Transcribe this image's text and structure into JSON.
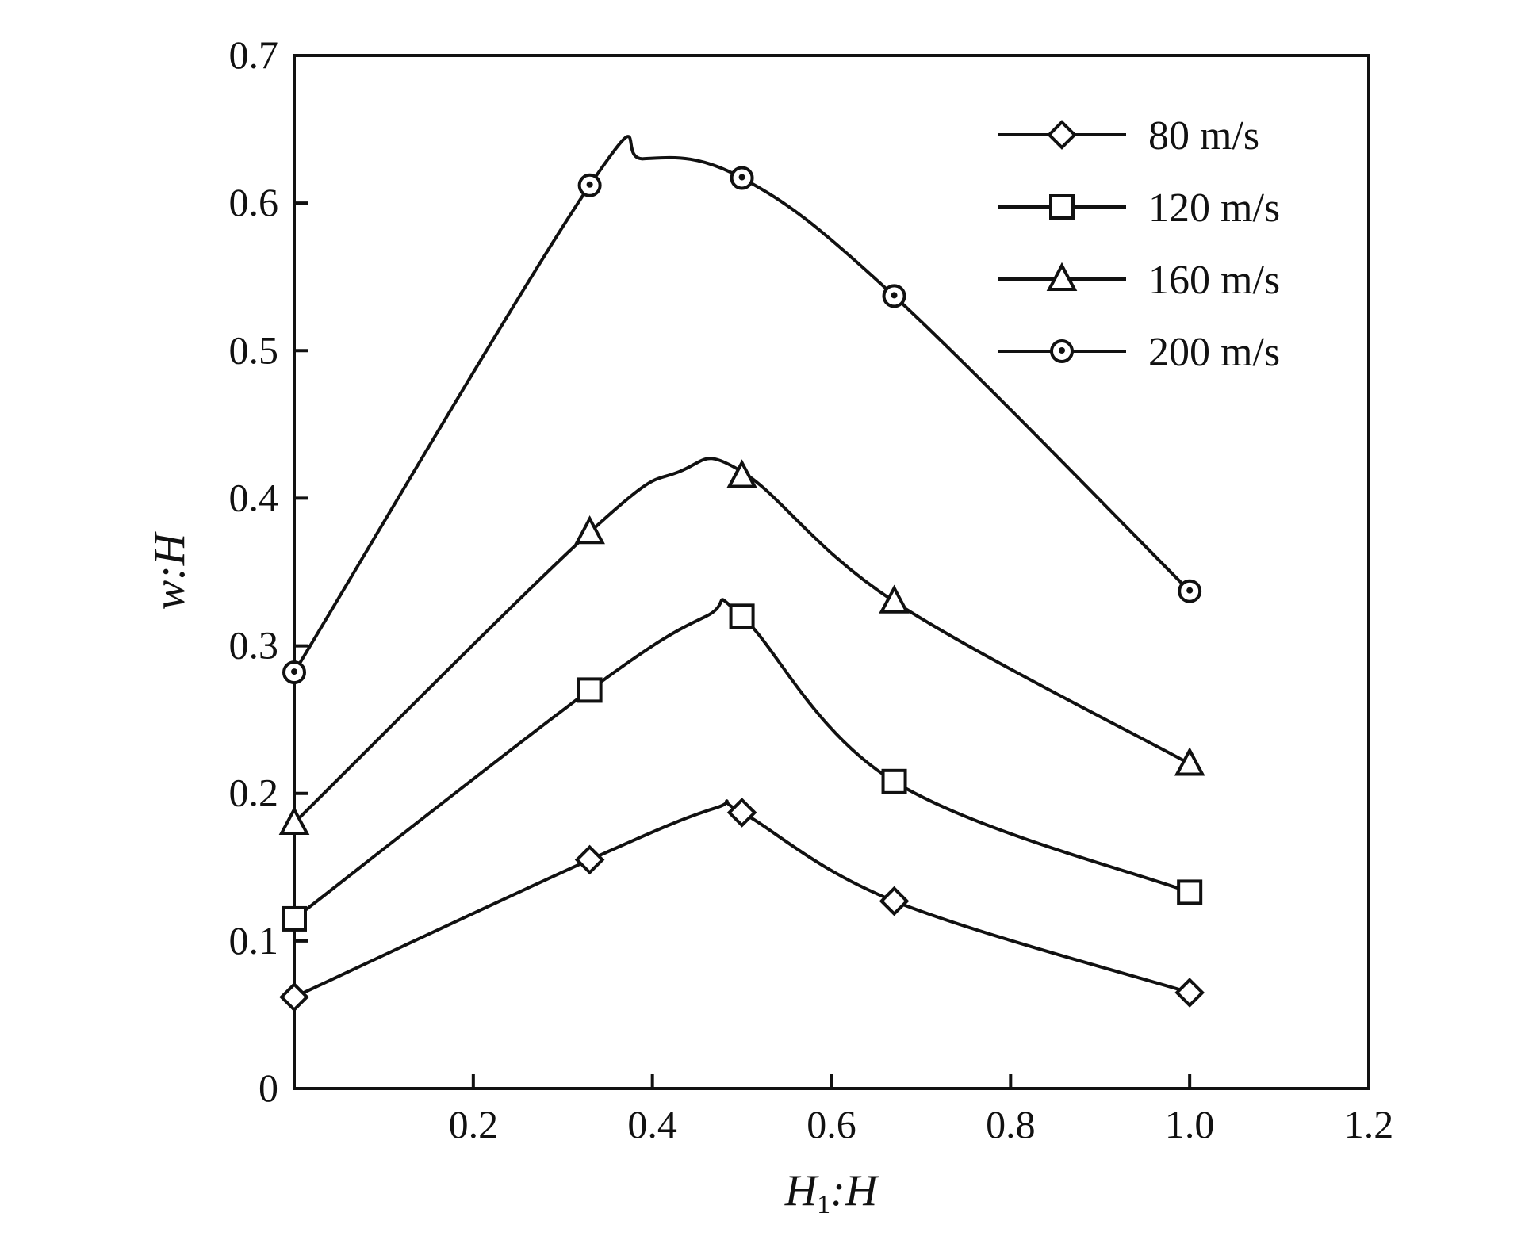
{
  "chart_data": {
    "type": "line",
    "title": "",
    "xlabel": "H1:H",
    "ylabel": "w:H",
    "xlim": [
      0,
      1.2
    ],
    "ylim": [
      0,
      0.7
    ],
    "xticks": [
      0.2,
      0.4,
      0.6,
      0.8,
      1.0,
      1.2
    ],
    "xtick_labels": [
      "0.2",
      "0.4",
      "0.6",
      "0.8",
      "1.0",
      "1.2"
    ],
    "yticks": [
      0,
      0.1,
      0.2,
      0.3,
      0.4,
      0.5,
      0.6,
      0.7
    ],
    "ytick_labels": [
      "0",
      "0.1",
      "0.2",
      "0.3",
      "0.4",
      "0.5",
      "0.6",
      "0.7"
    ],
    "legend_position": "top-right",
    "grid": false,
    "series": [
      {
        "name": "80 m/s",
        "marker": "diamond",
        "x": [
          0,
          0.33,
          0.5,
          0.67,
          1.0
        ],
        "y": [
          0.062,
          0.155,
          0.187,
          0.127,
          0.065
        ],
        "curve_x": [
          0,
          0.33,
          0.47,
          0.5,
          0.67,
          1.0
        ],
        "curve_y": [
          0.062,
          0.155,
          0.19,
          0.187,
          0.127,
          0.065
        ]
      },
      {
        "name": "120 m/s",
        "marker": "square",
        "x": [
          0,
          0.33,
          0.5,
          0.67,
          1.0
        ],
        "y": [
          0.115,
          0.27,
          0.32,
          0.208,
          0.133
        ],
        "curve_x": [
          0,
          0.33,
          0.46,
          0.5,
          0.67,
          1.0
        ],
        "curve_y": [
          0.115,
          0.27,
          0.32,
          0.32,
          0.208,
          0.133
        ]
      },
      {
        "name": "160 m/s",
        "marker": "triangle",
        "x": [
          0,
          0.33,
          0.5,
          0.67,
          1.0
        ],
        "y": [
          0.18,
          0.377,
          0.415,
          0.33,
          0.22
        ],
        "curve_x": [
          0,
          0.33,
          0.43,
          0.5,
          0.67,
          1.0
        ],
        "curve_y": [
          0.18,
          0.377,
          0.418,
          0.418,
          0.33,
          0.22
        ]
      },
      {
        "name": "200 m/s",
        "marker": "circle-dot",
        "x": [
          0,
          0.33,
          0.5,
          0.67,
          1.0
        ],
        "y": [
          0.282,
          0.612,
          0.617,
          0.537,
          0.337
        ],
        "curve_x": [
          0,
          0.33,
          0.39,
          0.5,
          0.67,
          1.0
        ],
        "curve_y": [
          0.282,
          0.612,
          0.63,
          0.617,
          0.537,
          0.337
        ]
      }
    ]
  }
}
